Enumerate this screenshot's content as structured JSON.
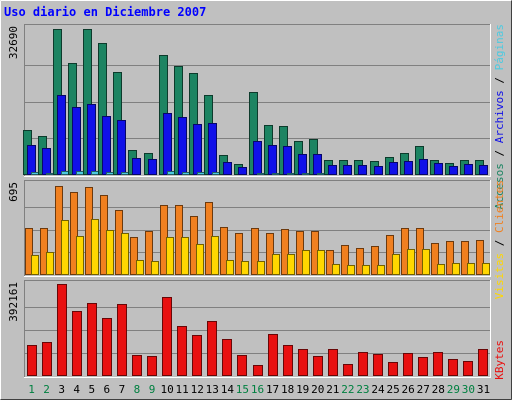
{
  "chart_data": {
    "type": "bar",
    "title": "Uso diario en Diciembre 2007",
    "categories": [
      "1",
      "2",
      "3",
      "4",
      "5",
      "6",
      "7",
      "8",
      "9",
      "10",
      "11",
      "12",
      "13",
      "14",
      "15",
      "16",
      "17",
      "18",
      "19",
      "20",
      "21",
      "22",
      "23",
      "24",
      "25",
      "26",
      "27",
      "28",
      "29",
      "30",
      "31"
    ],
    "weekend_days": [
      "1",
      "2",
      "8",
      "9",
      "15",
      "16",
      "22",
      "23",
      "29",
      "30"
    ],
    "panels": [
      {
        "id": "top",
        "ymax_label": "32690",
        "ymax": 32690,
        "series": [
          {
            "name": "Accesos",
            "color": "#1c8462",
            "values": [
              10100,
              8600,
              32500,
              24900,
              32400,
              29400,
              22900,
              5600,
              5000,
              26600,
              24200,
              22700,
              17900,
              4400,
              2400,
              18400,
              11200,
              10800,
              7500,
              7900,
              3400,
              3400,
              3400,
              3100,
              4100,
              4900,
              6400,
              3300,
              2600,
              3300,
              3300
            ]
          },
          {
            "name": "Archivos",
            "color": "#1010e8",
            "values": [
              6700,
              6100,
              17900,
              15100,
              15800,
              13200,
              12200,
              3800,
              3600,
              13800,
              13000,
              11300,
              11600,
              2800,
              1800,
              7500,
              6600,
              6400,
              4700,
              4700,
              2200,
              2200,
              2200,
              2000,
              2800,
              3200,
              3600,
              2600,
              2000,
              2400,
              2300
            ]
          },
          {
            "name": "Páginas",
            "color": "#4ccae0",
            "values": [
              600,
              500,
              800,
              900,
              800,
              700,
              600,
              300,
              300,
              800,
              700,
              700,
              700,
              200,
              200,
              500,
              500,
              400,
              400,
              400,
              200,
              200,
              200,
              200,
              300,
              300,
              300,
              200,
              200,
              200,
              200
            ]
          }
        ]
      },
      {
        "id": "middle",
        "ymax_label": "695",
        "ymax": 695,
        "series": [
          {
            "name": "Clientes",
            "color": "#f08020",
            "values": [
              357,
              358,
              679,
              631,
              669,
              612,
              497,
              290,
              333,
              532,
              533,
              450,
              556,
              365,
              324,
              360,
              321,
              352,
              337,
              335,
              190,
              231,
              205,
              220,
              305,
              357,
              357,
              246,
              262,
              258,
              269
            ]
          },
          {
            "name": "Visitas",
            "color": "#ffd700",
            "values": [
              151,
              173,
              423,
              297,
              430,
              347,
              317,
              112,
              109,
              287,
              294,
              236,
              297,
              111,
              106,
              110,
              164,
              164,
              189,
              190,
              81,
              79,
              78,
              79,
              158,
              200,
              200,
              86,
              90,
              92,
              89
            ]
          }
        ]
      },
      {
        "id": "bottom",
        "ymax_label": "392161",
        "ymax": 392161,
        "series": [
          {
            "name": "KBytes",
            "color": "#e81010",
            "values": [
              133000,
              143000,
              392161,
              279000,
              311000,
              249000,
              305000,
              90000,
              87000,
              337000,
              214000,
              174000,
              233000,
              158000,
              90000,
              46000,
              178000,
              133000,
              114000,
              84000,
              115000,
              53000,
              102000,
              93000,
              58000,
              100000,
              81000,
              101000,
              72000,
              64000,
              114000
            ]
          }
        ]
      }
    ],
    "legend_right": [
      {
        "text": "Accesos",
        "color": "#1c8462"
      },
      {
        "text": "/",
        "color": "#000000"
      },
      {
        "text": "Archivos",
        "color": "#1010e8"
      },
      {
        "text": "/",
        "color": "#000000"
      },
      {
        "text": "Páginas",
        "color": "#4ccae0"
      },
      {
        "text": "Visitas",
        "color": "#ffd700"
      },
      {
        "text": "/",
        "color": "#000000"
      },
      {
        "text": "Clientes",
        "color": "#f08020"
      },
      {
        "text": "KBytes",
        "color": "#e81010"
      }
    ],
    "colors": {
      "background": "#c0c0c0",
      "title": "#0000ff",
      "weekday_label": "#000000",
      "weekend_label": "#008040",
      "gridline": "#808080"
    }
  }
}
